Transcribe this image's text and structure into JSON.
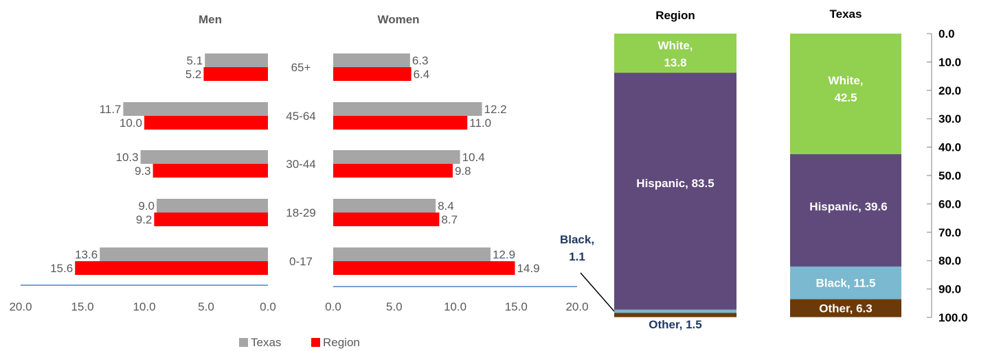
{
  "chart_data": [
    {
      "type": "bar",
      "orientation": "horizontal",
      "title": "Men",
      "categories": [
        "65+",
        "45-64",
        "30-44",
        "18-29",
        "0-17"
      ],
      "series": [
        {
          "name": "Texas",
          "values": [
            5.1,
            11.7,
            10.3,
            9.0,
            13.6
          ]
        },
        {
          "name": "Region",
          "values": [
            5.2,
            10.0,
            9.3,
            9.2,
            15.6
          ]
        }
      ],
      "xlim": [
        20,
        0
      ],
      "x_ticks": [
        "20.0",
        "15.0",
        "10.0",
        "5.0",
        "0.0"
      ],
      "value_labels": {
        "Texas": [
          "5.1",
          "11.7",
          "10.3",
          "9.0",
          "13.6"
        ],
        "Region": [
          "5.2",
          "10.0",
          "9.3",
          "9.2",
          "15.6"
        ]
      }
    },
    {
      "type": "bar",
      "orientation": "horizontal",
      "title": "Women",
      "categories": [
        "65+",
        "45-64",
        "30-44",
        "18-29",
        "0-17"
      ],
      "series": [
        {
          "name": "Texas",
          "values": [
            6.3,
            12.2,
            10.4,
            8.4,
            12.9
          ]
        },
        {
          "name": "Region",
          "values": [
            6.4,
            11.0,
            9.8,
            8.7,
            14.9
          ]
        }
      ],
      "xlim": [
        0,
        20
      ],
      "x_ticks": [
        "0.0",
        "5.0",
        "10.0",
        "15.0",
        "20.0"
      ],
      "value_labels": {
        "Texas": [
          "6.3",
          "12.2",
          "10.4",
          "8.4",
          "12.9"
        ],
        "Region": [
          "6.4",
          "11.0",
          "9.8",
          "8.7",
          "14.9"
        ]
      }
    },
    {
      "type": "bar",
      "stacked": true,
      "categories": [
        "Region",
        "Texas"
      ],
      "series": [
        {
          "name": "White",
          "values": [
            13.8,
            42.5
          ]
        },
        {
          "name": "Hispanic",
          "values": [
            83.5,
            39.6
          ]
        },
        {
          "name": "Black",
          "values": [
            1.1,
            11.5
          ]
        },
        {
          "name": "Other",
          "values": [
            1.5,
            6.3
          ]
        }
      ],
      "segment_labels": {
        "Region": [
          "White,",
          "13.8",
          "Hispanic, 83.5",
          "Black,",
          "1.1",
          "Other, 1.5"
        ],
        "Texas": [
          "White,",
          "42.5",
          "Hispanic, 39.6",
          "Black, 11.5",
          "Other, 6.3"
        ]
      },
      "ylim": [
        0,
        100
      ],
      "y_inverted": true,
      "y_axis_side": "right",
      "y_ticks": [
        "0.0",
        "10.0",
        "20.0",
        "30.0",
        "40.0",
        "50.0",
        "60.0",
        "70.0",
        "80.0",
        "90.0",
        "100.0"
      ]
    }
  ],
  "legend": [
    {
      "label": "Texas",
      "color": "#a6a6a6"
    },
    {
      "label": "Region",
      "color": "#ff0000"
    }
  ],
  "colors": {
    "texas": "#a6a6a6",
    "region": "#ff0000",
    "white": "#92d050",
    "hispanic": "#604a7b",
    "black": "#7ab9cf",
    "other": "#6b3a0a",
    "axis_blue": "#4f81bd"
  }
}
